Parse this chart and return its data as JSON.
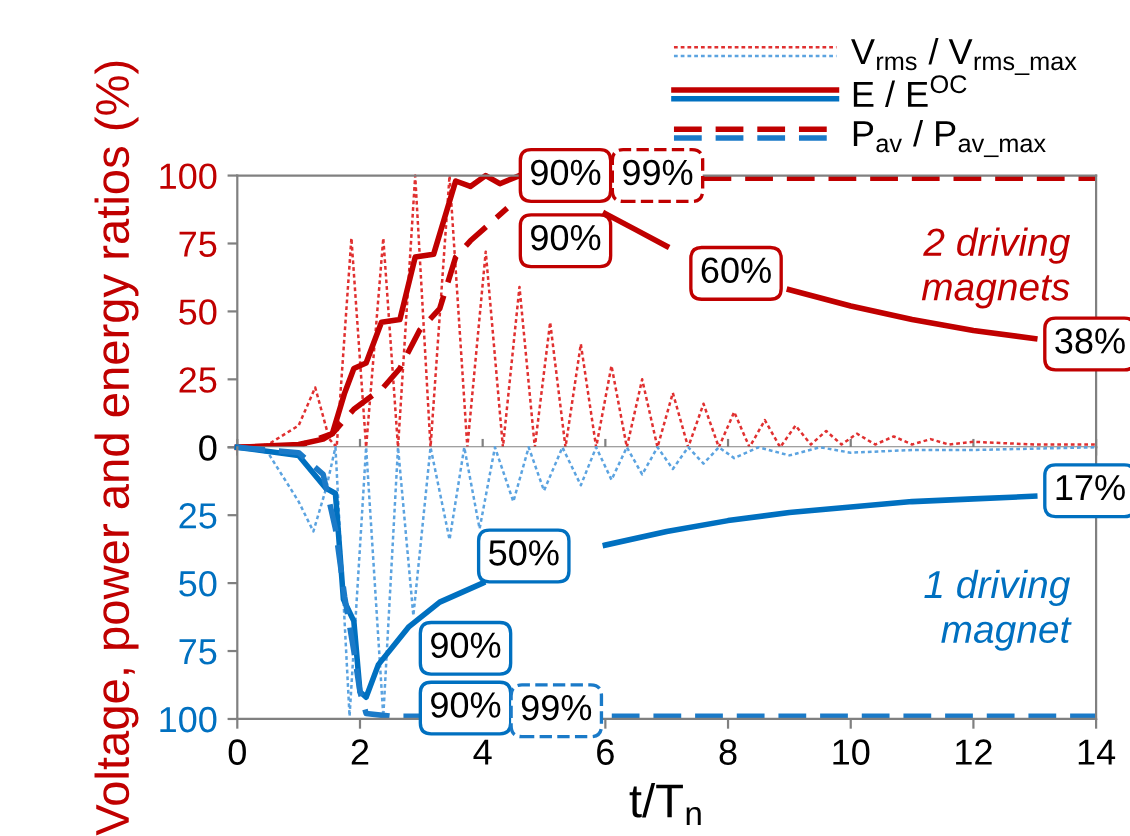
{
  "chart_data": [
    {
      "type": "line",
      "ylabel": "Voltage, power and energy ratios (%)",
      "xlim": [
        0,
        14
      ],
      "xticks": [
        {
          "value": 0,
          "label": null
        },
        {
          "value": 2,
          "label": null
        },
        {
          "value": 4,
          "label": null
        },
        {
          "value": 6,
          "label": null
        },
        {
          "value": 8,
          "label": null
        },
        {
          "value": 10,
          "label": null
        },
        {
          "value": 12,
          "label": null
        },
        {
          "value": 14,
          "label": null
        }
      ],
      "ylim": [
        0,
        100
      ],
      "yticks": [
        0,
        25,
        50,
        75,
        100
      ],
      "tick_labels": "y",
      "legend": "top right",
      "series": [
        {
          "name": "V$_{rms}$ / V$_{rms_max}$",
          "color": "#e03030",
          "line_style": "dotted",
          "x": [
            0,
            0.5,
            1.0,
            1.27,
            1.5,
            1.62,
            1.86,
            2.1,
            2.38,
            2.62,
            2.9,
            3.15,
            3.46,
            3.75,
            4.05,
            4.33,
            4.6,
            4.85,
            5.1,
            5.35,
            5.6,
            5.85,
            6.1,
            6.35,
            6.6,
            6.85,
            7.1,
            7.35,
            7.6,
            7.85,
            8.1,
            8.35,
            8.6,
            8.85,
            9.1,
            9.35,
            9.6,
            9.85,
            10.1,
            10.4,
            10.7,
            11,
            11.3,
            11.6,
            12,
            13,
            14
          ],
          "values": [
            0,
            1,
            8,
            22,
            3,
            0,
            77,
            0,
            77,
            0,
            100,
            0,
            100,
            0,
            72,
            0,
            59,
            0,
            46,
            0,
            38,
            0,
            30,
            0,
            25,
            0,
            20,
            0,
            16,
            0,
            13,
            0,
            10,
            0,
            8,
            1,
            6,
            1,
            5,
            1,
            4,
            1,
            3,
            1,
            2,
            1,
            1
          ]
        },
        {
          "name": "E / E$^{OC}$",
          "color": "#c00000",
          "line_style": "solid",
          "x": [
            0,
            1,
            1.4,
            1.55,
            1.75,
            1.9,
            2.1,
            2.35,
            2.65,
            2.9,
            3.2,
            3.56,
            3.8,
            4.05,
            4.28,
            4.6,
            5,
            5.5,
            6,
            6.5,
            7,
            7.5,
            8.2,
            9,
            10,
            11,
            12,
            13
          ],
          "values": [
            0,
            1,
            3,
            5,
            20,
            29,
            31,
            46,
            47,
            70,
            71,
            98,
            96,
            100,
            97,
            100,
            null,
            null,
            86,
            80,
            74,
            null,
            null,
            58,
            52,
            47,
            43,
            40
          ]
        },
        {
          "name": "P$_{av}$ / P$_{av_max}$",
          "color": "#c00000",
          "line_style": "dashed",
          "x": [
            0,
            1,
            1.55,
            1.9,
            2.38,
            2.65,
            2.97,
            3.3,
            3.56,
            3.8,
            4.1,
            4.4,
            5,
            6,
            7.6,
            14
          ],
          "values": [
            0,
            0.5,
            5,
            14,
            22,
            29,
            43,
            51,
            70,
            76,
            82,
            88,
            null,
            null,
            99,
            99
          ]
        }
      ],
      "annotations": [
        "90%",
        "90%",
        "99%",
        "60%",
        "38%",
        "2 driving\nmagnets"
      ]
    },
    {
      "type": "line",
      "xlabel": "t/T$_{n}$",
      "xlim": [
        0,
        14
      ],
      "xticks": [
        0,
        2,
        4,
        6,
        8,
        10,
        12,
        14
      ],
      "ylim": [
        100,
        0
      ],
      "yticks": [
        {
          "value": 0,
          "label": null
        },
        25,
        50,
        75,
        100
      ],
      "series": [
        {
          "color": "#5ba3e0",
          "line_style": "dotted",
          "x": [
            0,
            0.5,
            1.0,
            1.24,
            1.45,
            1.6,
            1.83,
            2.1,
            2.38,
            2.62,
            2.87,
            3.15,
            3.46,
            3.7,
            3.95,
            4.2,
            4.5,
            4.75,
            5.0,
            5.3,
            5.6,
            5.85,
            6.1,
            6.35,
            6.6,
            6.85,
            7.1,
            7.35,
            7.6,
            7.85,
            8.1,
            8.5,
            9,
            9.5,
            10,
            11,
            12,
            14
          ],
          "values": [
            0,
            2,
            20,
            31,
            15,
            0,
            99,
            0,
            99,
            0,
            62,
            0,
            34,
            0,
            30,
            0,
            20,
            0,
            16,
            0,
            14,
            0,
            12,
            0,
            10,
            0,
            8,
            0,
            6,
            0,
            4,
            0,
            3,
            0,
            2,
            1,
            1,
            0
          ]
        },
        {
          "color": "#0070c0",
          "line_style": "solid",
          "x": [
            0,
            1,
            1.44,
            1.6,
            1.73,
            1.9,
            2.0,
            2.1,
            2.3,
            2.8,
            3.3,
            4,
            5,
            6,
            7,
            8,
            9,
            10,
            11,
            12,
            13
          ],
          "values": [
            0,
            3,
            15,
            17,
            56,
            64,
            90,
            92,
            80,
            66,
            57,
            50,
            null,
            36,
            31,
            27,
            24,
            22,
            20,
            19,
            18
          ]
        },
        {
          "color": "#1a7ac8",
          "line_style": "dashed",
          "x": [
            0,
            1,
            1.4,
            1.6,
            1.75,
            1.9,
            2.0,
            2.1,
            2.5,
            14
          ],
          "values": [
            0,
            2,
            10,
            30,
            55,
            75,
            90,
            98,
            99,
            99
          ]
        }
      ],
      "annotations": [
        "90%",
        "90%",
        "50%",
        "99%",
        "17%",
        "1 driving\nmagnet"
      ]
    }
  ]
}
